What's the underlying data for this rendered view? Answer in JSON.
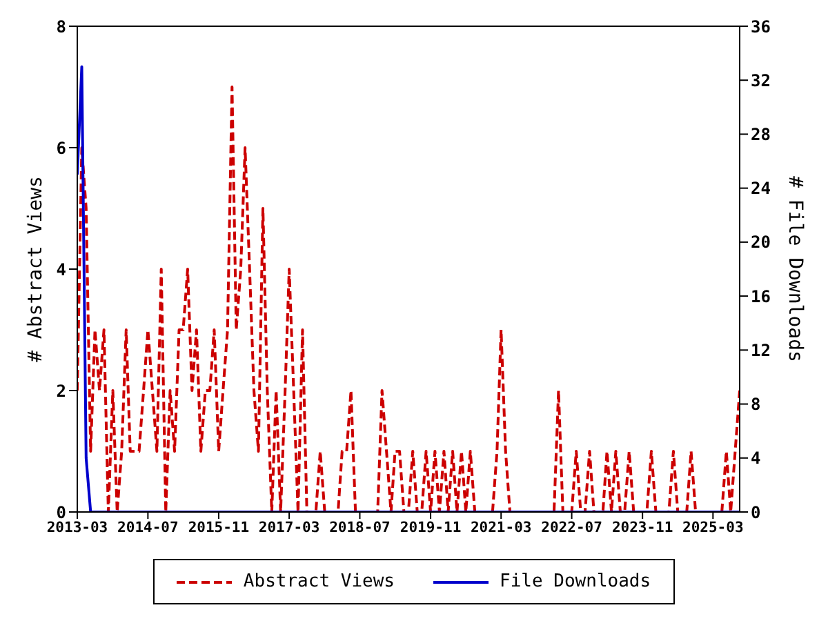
{
  "chart_data": {
    "type": "line",
    "ylabel": "# Abstract Views",
    "y2label": "# File Downloads",
    "x": [
      "2013-03",
      "2013-04",
      "2013-05",
      "2013-06",
      "2013-07",
      "2013-08",
      "2013-09",
      "2013-10",
      "2013-11",
      "2013-12",
      "2014-01",
      "2014-02",
      "2014-03",
      "2014-04",
      "2014-05",
      "2014-06",
      "2014-07",
      "2014-08",
      "2014-09",
      "2014-10",
      "2014-11",
      "2014-12",
      "2015-01",
      "2015-02",
      "2015-03",
      "2015-04",
      "2015-05",
      "2015-06",
      "2015-07",
      "2015-08",
      "2015-09",
      "2015-10",
      "2015-11",
      "2015-12",
      "2016-01",
      "2016-02",
      "2016-03",
      "2016-04",
      "2016-05",
      "2016-06",
      "2016-07",
      "2016-08",
      "2016-09",
      "2016-10",
      "2016-11",
      "2016-12",
      "2017-01",
      "2017-02",
      "2017-03",
      "2017-04",
      "2017-05",
      "2017-06",
      "2017-07",
      "2017-08",
      "2017-09",
      "2017-10",
      "2017-11",
      "2017-12",
      "2018-01",
      "2018-02",
      "2018-03",
      "2018-04",
      "2018-05",
      "2018-06",
      "2018-07",
      "2018-08",
      "2018-09",
      "2018-10",
      "2018-11",
      "2018-12",
      "2019-01",
      "2019-02",
      "2019-03",
      "2019-04",
      "2019-05",
      "2019-06",
      "2019-07",
      "2019-08",
      "2019-09",
      "2019-10",
      "2019-11",
      "2019-12",
      "2020-01",
      "2020-02",
      "2020-03",
      "2020-04",
      "2020-05",
      "2020-06",
      "2020-07",
      "2020-08",
      "2020-09",
      "2020-10",
      "2020-11",
      "2020-12",
      "2021-01",
      "2021-02",
      "2021-03",
      "2021-04",
      "2021-05",
      "2021-06",
      "2021-07",
      "2021-08",
      "2021-09",
      "2021-10",
      "2021-11",
      "2021-12",
      "2022-01",
      "2022-02",
      "2022-03",
      "2022-04",
      "2022-05",
      "2022-06",
      "2022-07",
      "2022-08",
      "2022-09",
      "2022-10",
      "2022-11",
      "2022-12",
      "2023-01",
      "2023-02",
      "2023-03",
      "2023-04",
      "2023-05",
      "2023-06",
      "2023-07",
      "2023-08",
      "2023-09",
      "2023-10",
      "2023-11",
      "2023-12",
      "2024-01",
      "2024-02",
      "2024-03",
      "2024-04",
      "2024-05",
      "2024-06",
      "2024-07",
      "2024-08",
      "2024-09",
      "2024-10",
      "2024-11",
      "2024-12",
      "2025-01",
      "2025-02",
      "2025-03",
      "2025-04",
      "2025-05",
      "2025-06",
      "2025-07",
      "2025-08",
      "2025-09"
    ],
    "series": [
      {
        "name": "Abstract Views",
        "color": "#cc0000",
        "line_style": "dashed",
        "values": [
          2,
          6,
          5,
          1,
          3,
          2,
          3,
          0,
          2,
          0,
          1,
          3,
          1,
          1,
          1,
          2,
          3,
          2,
          1,
          4,
          0,
          2,
          1,
          3,
          3,
          4,
          2,
          3,
          1,
          2,
          2,
          3,
          1,
          2,
          3,
          7,
          3,
          4,
          6,
          4,
          2,
          1,
          5,
          2,
          0,
          2,
          0,
          2,
          4,
          2,
          0,
          3,
          0,
          0,
          0,
          1,
          0,
          0,
          0,
          0,
          1,
          1,
          2,
          0,
          0,
          0,
          0,
          0,
          0,
          2,
          1,
          0,
          1,
          1,
          0,
          0,
          1,
          0,
          0,
          1,
          0,
          1,
          0,
          1,
          0,
          1,
          0,
          1,
          0,
          1,
          0,
          0,
          0,
          0,
          0,
          1,
          3,
          1,
          0,
          0,
          0,
          0,
          0,
          0,
          0,
          0,
          0,
          0,
          0,
          2,
          0,
          0,
          0,
          1,
          0,
          0,
          1,
          0,
          0,
          0,
          1,
          0,
          1,
          0,
          0,
          1,
          0,
          0,
          0,
          0,
          1,
          0,
          0,
          0,
          0,
          1,
          0,
          0,
          0,
          1,
          0,
          0,
          0,
          0,
          0,
          0,
          0,
          1,
          0,
          1,
          2
        ]
      },
      {
        "name": "File Downloads",
        "color": "#0000cc",
        "line_style": "solid",
        "axis": "y2",
        "values": [
          25,
          33,
          4,
          0,
          0,
          0,
          0,
          0,
          0,
          0,
          0,
          0,
          0,
          0,
          0,
          0,
          0,
          0,
          0,
          0,
          0,
          0,
          0,
          0,
          0,
          0,
          0,
          0,
          0,
          0,
          0,
          0,
          0,
          0,
          0,
          0,
          0,
          0,
          0,
          0,
          0,
          0,
          0,
          0,
          0,
          0,
          0,
          0,
          0,
          0,
          0,
          0,
          0,
          0,
          0,
          0,
          0,
          0,
          0,
          0,
          0,
          0,
          0,
          0,
          0,
          0,
          0,
          0,
          0,
          0,
          0,
          0,
          0,
          0,
          0,
          0,
          0,
          0,
          0,
          0,
          0,
          0,
          0,
          0,
          0,
          0,
          0,
          0,
          0,
          0,
          0,
          0,
          0,
          0,
          0,
          0,
          0,
          0,
          0,
          0,
          0,
          0,
          0,
          0,
          0,
          0,
          0,
          0,
          0,
          0,
          0,
          0,
          0,
          0,
          0,
          0,
          0,
          0,
          0,
          0,
          0,
          0,
          0,
          0,
          0,
          0,
          0,
          0,
          0,
          0,
          0,
          0,
          0,
          0,
          0,
          0,
          0,
          0,
          0,
          0,
          0,
          0,
          0,
          0,
          0,
          0,
          0,
          0,
          0,
          0,
          0
        ]
      }
    ],
    "xlim": [
      "2013-03",
      "2025-09"
    ],
    "xticks": [
      "2013-03",
      "2014-07",
      "2015-11",
      "2017-03",
      "2018-07",
      "2019-11",
      "2021-03",
      "2022-07",
      "2023-11",
      "2025-03"
    ],
    "ylim": [
      0,
      8
    ],
    "yticks": [
      0,
      2,
      4,
      6,
      8
    ],
    "y2lim": [
      0,
      36
    ],
    "y2ticks": [
      0,
      4,
      8,
      12,
      16,
      20,
      24,
      28,
      32,
      36
    ],
    "grid": false,
    "legend": "bottom",
    "marker": "none"
  }
}
